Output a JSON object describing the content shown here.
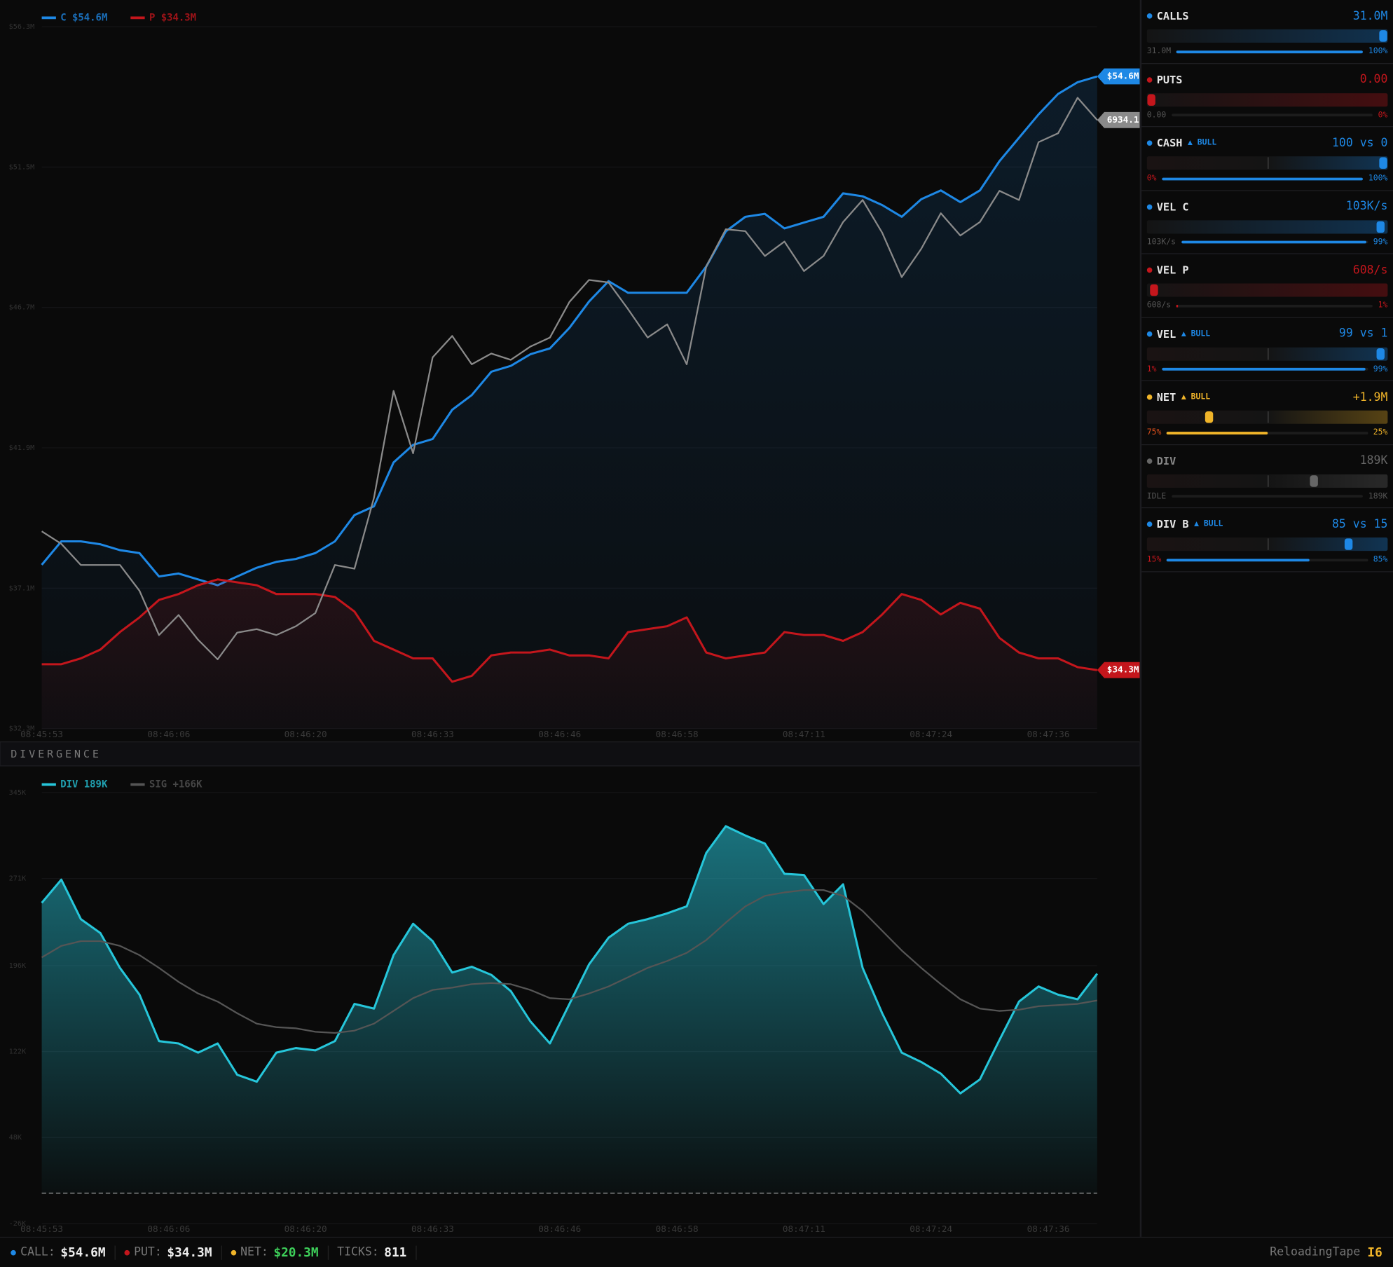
{
  "chart_data": [
    {
      "type": "line",
      "x": [
        0,
        2,
        4,
        6,
        8,
        10,
        12,
        14,
        16,
        18,
        20,
        22,
        24,
        26,
        28,
        30,
        32,
        34,
        36,
        38,
        40,
        42,
        44,
        46,
        48,
        50,
        52,
        54,
        56,
        58,
        60,
        62,
        64,
        66,
        68,
        70,
        72,
        74,
        76,
        78,
        80,
        82,
        84,
        86,
        88,
        90,
        92,
        94,
        96,
        98,
        100,
        102,
        104,
        106,
        108
      ],
      "xlim": [
        0,
        108
      ],
      "xticks": [
        {
          "value": 0,
          "label": "08:45:53"
        },
        {
          "value": 13,
          "label": "08:46:06"
        },
        {
          "value": 27,
          "label": "08:46:20"
        },
        {
          "value": 40,
          "label": "08:46:33"
        },
        {
          "value": 53,
          "label": "08:46:46"
        },
        {
          "value": 65,
          "label": "08:46:58"
        },
        {
          "value": 78,
          "label": "08:47:11"
        },
        {
          "value": 91,
          "label": "08:47:24"
        },
        {
          "value": 103,
          "label": "08:47:36"
        }
      ],
      "ylim": [
        32.3,
        56.3
      ],
      "yticks": [
        {
          "value": 56.3,
          "label": "$56.3M"
        },
        {
          "value": 51.5,
          "label": "$51.5M"
        },
        {
          "value": 46.7,
          "label": "$46.7M"
        },
        {
          "value": 41.9,
          "label": "$41.9M"
        },
        {
          "value": 37.1,
          "label": "$37.1M"
        },
        {
          "value": 32.3,
          "label": "$32.3M"
        }
      ],
      "y2lim": [
        5000,
        7231
      ],
      "grid": true,
      "series": [
        {
          "name": "C $54.6M",
          "color": "#1e88e5",
          "area": true,
          "end_label": "$54.6M",
          "values": [
            37.9,
            38.7,
            38.7,
            38.6,
            38.4,
            38.3,
            37.5,
            37.6,
            37.4,
            37.2,
            37.5,
            37.8,
            38.0,
            38.1,
            38.3,
            38.7,
            39.6,
            39.9,
            41.4,
            42.0,
            42.2,
            43.2,
            43.7,
            44.5,
            44.7,
            45.1,
            45.3,
            46.0,
            46.9,
            47.6,
            47.2,
            47.2,
            47.2,
            47.2,
            48.1,
            49.3,
            49.8,
            49.9,
            49.4,
            49.6,
            49.8,
            50.6,
            50.5,
            50.2,
            49.8,
            50.4,
            50.7,
            50.3,
            50.7,
            51.7,
            52.5,
            53.3,
            54.0,
            54.4,
            54.6
          ]
        },
        {
          "name": "P $34.3M",
          "color": "#c4161c",
          "area": true,
          "end_label": "$34.3M",
          "values": [
            34.5,
            34.5,
            34.7,
            35.0,
            35.6,
            36.1,
            36.7,
            36.9,
            37.2,
            37.4,
            37.3,
            37.2,
            36.9,
            36.9,
            36.9,
            36.8,
            36.3,
            35.3,
            35.0,
            34.7,
            34.7,
            33.9,
            34.1,
            34.8,
            34.9,
            34.9,
            35.0,
            34.8,
            34.8,
            34.7,
            35.6,
            35.7,
            35.8,
            36.1,
            34.9,
            34.7,
            34.8,
            34.9,
            35.6,
            35.5,
            35.5,
            35.3,
            35.6,
            36.2,
            36.9,
            36.7,
            36.2,
            36.6,
            36.4,
            35.4,
            34.9,
            34.7,
            34.7,
            34.4,
            34.3
          ]
        },
        {
          "color": "#8a8a8a",
          "axis": "y2",
          "area": false,
          "end_label": "6934.1",
          "values": [
            5627,
            5587,
            5520,
            5520,
            5520,
            5438,
            5297,
            5361,
            5282,
            5220,
            5305,
            5316,
            5297,
            5325,
            5367,
            5520,
            5508,
            5734,
            6073,
            5875,
            6180,
            6248,
            6158,
            6192,
            6172,
            6214,
            6243,
            6356,
            6426,
            6418,
            6333,
            6243,
            6285,
            6158,
            6469,
            6587,
            6581,
            6502,
            6548,
            6454,
            6502,
            6610,
            6680,
            6576,
            6435,
            6525,
            6638,
            6567,
            6610,
            6709,
            6680,
            6864,
            6892,
            7005,
            6934.1
          ]
        }
      ]
    },
    {
      "type": "line",
      "title": "DIVERGENCE",
      "x": [
        0,
        2,
        4,
        6,
        8,
        10,
        12,
        14,
        16,
        18,
        20,
        22,
        24,
        26,
        28,
        30,
        32,
        34,
        36,
        38,
        40,
        42,
        44,
        46,
        48,
        50,
        52,
        54,
        56,
        58,
        60,
        62,
        64,
        66,
        68,
        70,
        72,
        74,
        76,
        78,
        80,
        82,
        84,
        86,
        88,
        90,
        92,
        94,
        96,
        98,
        100,
        102,
        104,
        106,
        108
      ],
      "xlim": [
        0,
        108
      ],
      "xticks": [
        {
          "value": 0,
          "label": "08:45:53"
        },
        {
          "value": 13,
          "label": "08:46:06"
        },
        {
          "value": 27,
          "label": "08:46:20"
        },
        {
          "value": 40,
          "label": "08:46:33"
        },
        {
          "value": 53,
          "label": "08:46:46"
        },
        {
          "value": 65,
          "label": "08:46:58"
        },
        {
          "value": 78,
          "label": "08:47:11"
        },
        {
          "value": 91,
          "label": "08:47:24"
        },
        {
          "value": 103,
          "label": "08:47:36"
        }
      ],
      "ylim": [
        -26,
        345
      ],
      "yticks": [
        {
          "value": 345,
          "label": "345K"
        },
        {
          "value": 271,
          "label": "271K"
        },
        {
          "value": 196,
          "label": "196K"
        },
        {
          "value": 122,
          "label": "122K"
        },
        {
          "value": 48,
          "label": "48K"
        },
        {
          "value": -26,
          "label": "-26K"
        }
      ],
      "grid": true,
      "zero_line": true,
      "series": [
        {
          "name": "DIV 189K",
          "color": "#26c6da",
          "area": true,
          "values": [
            250,
            270,
            236,
            224,
            194,
            171,
            131,
            129,
            121,
            129,
            102,
            96,
            121,
            125,
            123,
            131,
            163,
            159,
            205,
            232,
            217,
            190,
            195,
            188,
            174,
            148,
            129,
            163,
            197,
            220,
            232,
            236,
            241,
            247,
            293,
            316,
            308,
            301,
            275,
            274,
            249,
            266,
            194,
            155,
            121,
            113,
            103,
            86,
            98,
            132,
            165,
            178,
            171,
            167,
            189
          ]
        },
        {
          "name": "SIG +166K",
          "color": "#555555",
          "area": false,
          "values": [
            203,
            213,
            217,
            217,
            213,
            205,
            194,
            182,
            172,
            165,
            155,
            146,
            143,
            142,
            139,
            138,
            140,
            146,
            157,
            168,
            175,
            177,
            180,
            181,
            180,
            175,
            168,
            167,
            172,
            178,
            186,
            194,
            200,
            207,
            218,
            233,
            247,
            256,
            259,
            261,
            261,
            256,
            243,
            226,
            209,
            194,
            180,
            167,
            159,
            157,
            158,
            161,
            162,
            163,
            166
          ]
        }
      ]
    }
  ],
  "sidebar": {
    "rows": [
      {
        "label": "CALLS",
        "value": "31.0M",
        "low": "31.0M",
        "high": "100%",
        "color": "#1e88e5",
        "low_color": "#555",
        "high_color": "#1e88e5",
        "bipolar": false,
        "gauge": 100,
        "progress": 100
      },
      {
        "label": "PUTS",
        "value": "0.00",
        "low": "0.00",
        "high": "0%",
        "color": "#c4161c",
        "low_color": "#555",
        "high_color": "#c4161c",
        "bipolar": false,
        "gauge": 0,
        "progress": 0
      },
      {
        "label": "CASH",
        "tag": "▲ BULL",
        "value": "100 vs 0",
        "low": "0%",
        "high": "100%",
        "color": "#1e88e5",
        "low_color": "#c4161c",
        "high_color": "#1e88e5",
        "bipolar": true,
        "gauge": 100,
        "progress": 100
      },
      {
        "label": "VEL C",
        "value": "103K/s",
        "low": "103K/s",
        "high": "99%",
        "color": "#1e88e5",
        "low_color": "#555",
        "high_color": "#1e88e5",
        "bipolar": false,
        "gauge": 99,
        "progress": 99
      },
      {
        "label": "VEL P",
        "value": "608/s",
        "low": "608/s",
        "high": "1%",
        "color": "#c4161c",
        "low_color": "#555",
        "high_color": "#c4161c",
        "bipolar": false,
        "gauge": 1,
        "progress": 1
      },
      {
        "label": "VEL",
        "tag": "▲ BULL",
        "value": "99 vs 1",
        "low": "1%",
        "high": "99%",
        "color": "#1e88e5",
        "low_color": "#c4161c",
        "high_color": "#1e88e5",
        "bipolar": true,
        "gauge": 99,
        "progress": 99
      },
      {
        "label": "NET",
        "tag": "▲ BULL",
        "value": "+1.9M",
        "low": "75%",
        "high": "25%",
        "color": "#f0b429",
        "low_color": "#e0501c",
        "high_color": "#f0b429",
        "bipolar": true,
        "gauge": 25,
        "progress": 50
      },
      {
        "label": "DIV",
        "value": "189K",
        "low": "IDLE",
        "high": "189K",
        "color": "#666666",
        "low_color": "#555",
        "high_color": "#555",
        "bipolar": true,
        "muted": true,
        "gauge": 70,
        "progress": 0
      },
      {
        "label": "DIV B",
        "tag": "▲ BULL",
        "value": "85 vs 15",
        "low": "15%",
        "high": "85%",
        "color": "#1e88e5",
        "low_color": "#c4161c",
        "high_color": "#1e88e5",
        "bipolar": true,
        "gauge": 85,
        "progress": 71
      }
    ]
  },
  "status_bar": {
    "items": [
      {
        "label": "CALL:",
        "value": "$54.6M",
        "color": "#1e88e5",
        "value_color": "#eeeeee"
      },
      {
        "label": "PUT:",
        "value": "$34.3M",
        "color": "#c4161c",
        "value_color": "#eeeeee"
      },
      {
        "label": "NET:",
        "value": "$20.3M",
        "color": "#f0b429",
        "value_color": "#3ecf5a"
      },
      {
        "label": "TICKS:",
        "value": "811",
        "value_color": "#eeeeee"
      }
    ],
    "brand": "ReloadingTape",
    "badge": "I6"
  }
}
